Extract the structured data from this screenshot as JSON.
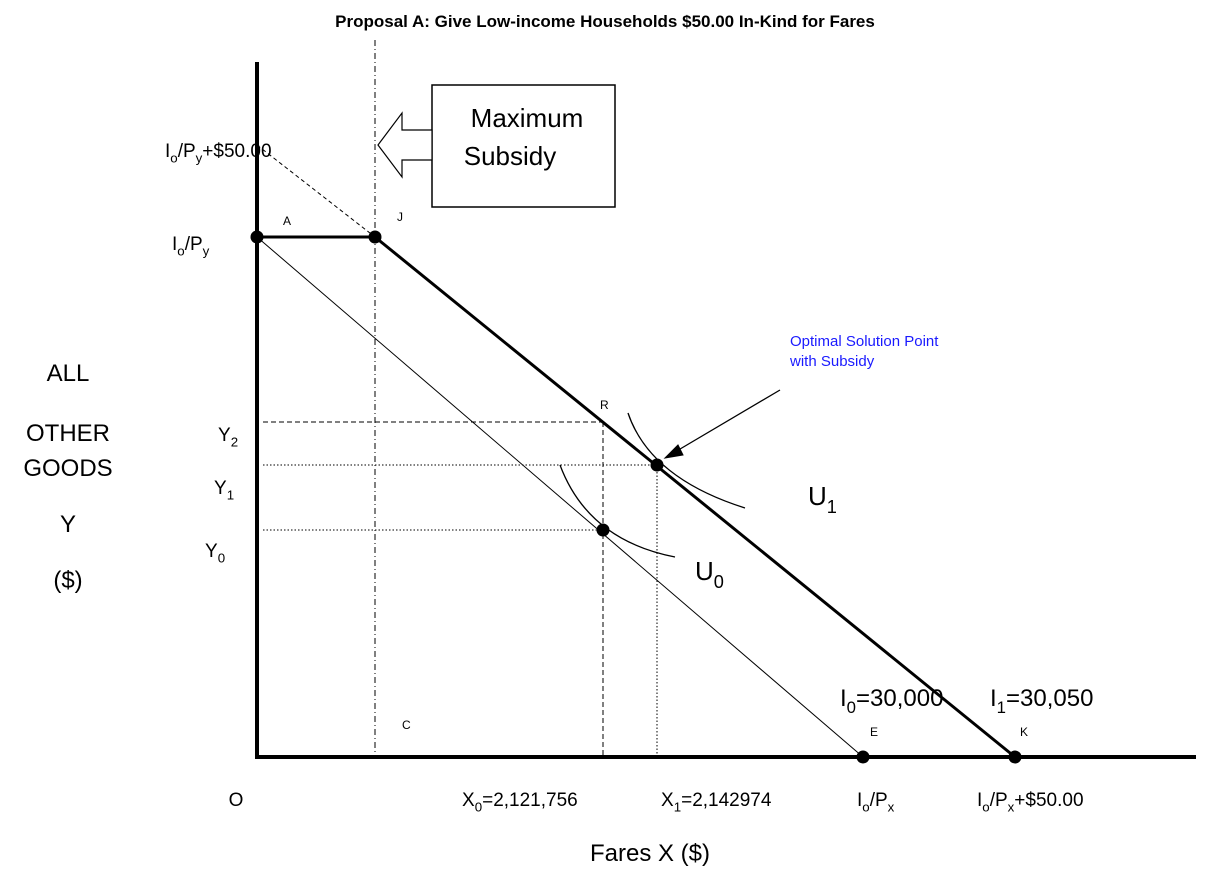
{
  "labels": [
    {
      "segments": [
        "Proposal A: Give Low-income Households $50.00 In-Kind for Fares"
      ]
    },
    {
      "segments": [
        "Maximum"
      ]
    },
    {
      "segments": [
        "Subsidy"
      ]
    },
    {
      "segments": [
        "Optimal Solution Point"
      ]
    },
    {
      "segments": [
        "with Subsidy"
      ]
    },
    {
      "segments": [
        "U",
        {
          "sub": "1"
        }
      ]
    },
    {
      "segments": [
        "U",
        {
          "sub": "0"
        }
      ]
    },
    {
      "segments": [
        "I",
        {
          "sub": "0"
        },
        "=30,000"
      ]
    },
    {
      "segments": [
        "I",
        {
          "sub": "1"
        },
        "=30,050"
      ]
    },
    {
      "segments": [
        "A"
      ]
    },
    {
      "segments": [
        "J"
      ]
    },
    {
      "segments": [
        "R"
      ]
    },
    {
      "segments": [
        "C"
      ]
    },
    {
      "segments": [
        "E"
      ]
    },
    {
      "segments": [
        "K"
      ]
    },
    {
      "segments": [
        "ALL"
      ]
    },
    {
      "segments": [
        "OTHER"
      ]
    },
    {
      "segments": [
        "GOODS"
      ]
    },
    {
      "segments": [
        "Y"
      ]
    },
    {
      "segments": [
        "($)"
      ]
    },
    {
      "segments": [
        "I",
        {
          "sub": "o"
        },
        "/P",
        {
          "sub": "y"
        },
        "+$50.00"
      ]
    },
    {
      "segments": [
        "I",
        {
          "sub": "o"
        },
        "/P",
        {
          "sub": "y"
        }
      ]
    },
    {
      "segments": [
        "Y",
        {
          "sub": "2"
        }
      ]
    },
    {
      "segments": [
        "Y",
        {
          "sub": "1"
        }
      ]
    },
    {
      "segments": [
        "Y",
        {
          "sub": "0"
        }
      ]
    },
    {
      "segments": [
        "O"
      ]
    },
    {
      "segments": [
        "X",
        {
          "sub": "0"
        },
        "=2,121,756"
      ]
    },
    {
      "segments": [
        "X",
        {
          "sub": "1"
        },
        "=2,142974"
      ]
    },
    {
      "segments": [
        "I",
        {
          "sub": "o"
        },
        "/P",
        {
          "sub": "x"
        }
      ]
    },
    {
      "segments": [
        "I",
        {
          "sub": "o"
        },
        "/P",
        {
          "sub": "x"
        },
        "+$50.00"
      ]
    },
    {
      "segments": [
        "Fares X ($)"
      ]
    }
  ]
}
